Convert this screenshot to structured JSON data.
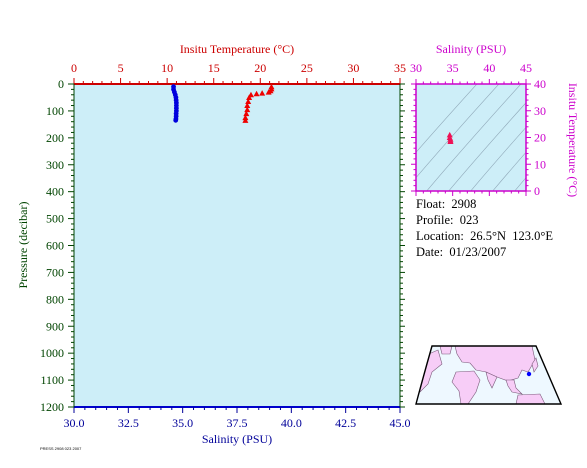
{
  "colors": {
    "temperature": "#cc0000",
    "salinity": "#000099",
    "pressure_axis": "#004400",
    "inset_axis": "#cc00cc",
    "plot_bg": "#cdeef8",
    "temp_series": "#ee0000",
    "sal_series": "#0000dd",
    "inset_points": "#ee1155"
  },
  "chart_data": [
    {
      "type": "scatter",
      "title": "",
      "top_axis_label": "Insitu Temperature (°C)",
      "top_axis_range": [
        0,
        35
      ],
      "top_ticks": [
        "0",
        "5",
        "10",
        "15",
        "20",
        "25",
        "30",
        "35"
      ],
      "bottom_axis_label": "Salinity (PSU)",
      "bottom_axis_range": [
        30,
        45
      ],
      "bottom_ticks": [
        "30.0",
        "32.5",
        "35.0",
        "37.5",
        "40.0",
        "42.5",
        "45.0"
      ],
      "y_axis_label": "Pressure (decibar)",
      "y_axis_range": [
        0,
        1200
      ],
      "y_inverted": true,
      "y_ticks": [
        "0",
        "100",
        "200",
        "300",
        "400",
        "500",
        "600",
        "700",
        "800",
        "900",
        "1000",
        "1100",
        "1200"
      ],
      "grid": false,
      "series": [
        {
          "axis": "temperature",
          "marker": "triangle",
          "points": [
            [
              21.2,
              10
            ],
            [
              21.2,
              18
            ],
            [
              21.1,
              25
            ],
            [
              20.9,
              30
            ],
            [
              20.2,
              34
            ],
            [
              19.6,
              36
            ],
            [
              19.0,
              40
            ],
            [
              18.8,
              50
            ],
            [
              18.7,
              65
            ],
            [
              18.6,
              80
            ],
            [
              18.6,
              95
            ],
            [
              18.5,
              110
            ],
            [
              18.4,
              125
            ],
            [
              18.4,
              135
            ]
          ]
        },
        {
          "axis": "salinity",
          "marker": "dot",
          "points": [
            [
              34.58,
              10
            ],
            [
              34.58,
              20
            ],
            [
              34.62,
              30
            ],
            [
              34.66,
              40
            ],
            [
              34.69,
              50
            ],
            [
              34.7,
              60
            ],
            [
              34.71,
              70
            ],
            [
              34.71,
              80
            ],
            [
              34.71,
              90
            ],
            [
              34.71,
              100
            ],
            [
              34.7,
              110
            ],
            [
              34.7,
              120
            ],
            [
              34.69,
              130
            ],
            [
              34.68,
              135
            ]
          ]
        }
      ]
    },
    {
      "type": "scatter",
      "title": "",
      "xlabel": "Salinity (PSU)",
      "x_range": [
        30,
        45
      ],
      "x_ticks": [
        "30",
        "35",
        "40",
        "45"
      ],
      "ylabel": "Insitu Temperature (°C)",
      "y_range": [
        0,
        40
      ],
      "y_ticks": [
        "0",
        "10",
        "20",
        "30",
        "40"
      ],
      "density_contours": true,
      "points": [
        [
          34.6,
          21.0
        ],
        [
          34.6,
          20.0
        ],
        [
          34.7,
          19.4
        ],
        [
          34.7,
          18.8
        ],
        [
          34.7,
          18.5
        ]
      ]
    }
  ],
  "info": {
    "float": "Float:  2908",
    "profile": "Profile:  023",
    "location": "Location:  26.5°N  123.0°E",
    "date": "Date:  01/23/2007"
  },
  "map": {
    "marker_lat": 26.5,
    "marker_lon": 123.0
  },
  "footer_text": "PRESS 2908 023 2007"
}
